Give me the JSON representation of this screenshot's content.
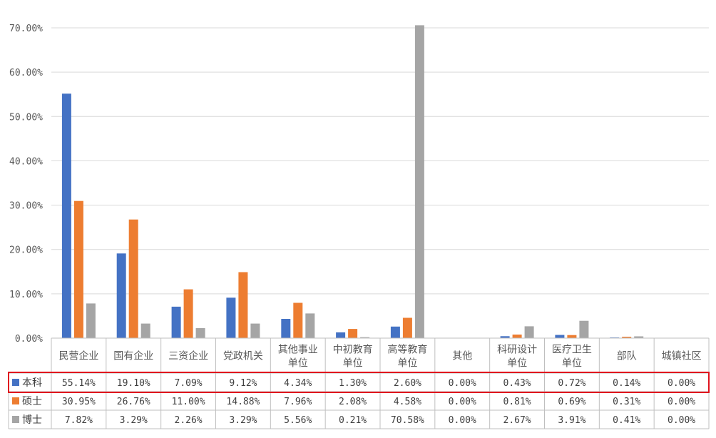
{
  "chart_data": {
    "type": "bar",
    "title": "",
    "xlabel": "",
    "ylabel": "",
    "ylim": [
      0,
      70
    ],
    "y_ticks": [
      "0.00%",
      "10.00%",
      "20.00%",
      "30.00%",
      "40.00%",
      "50.00%",
      "60.00%",
      "70.00%"
    ],
    "grid": true,
    "legend": "data-table",
    "categories": [
      [
        "民营企业"
      ],
      [
        "国有企业"
      ],
      [
        "三资企业"
      ],
      [
        "党政机关"
      ],
      [
        "其他事业",
        "单位"
      ],
      [
        "中初教育",
        "单位"
      ],
      [
        "高等教育",
        "单位"
      ],
      [
        "其他"
      ],
      [
        "科研设计",
        "单位"
      ],
      [
        "医疗卫生",
        "单位"
      ],
      [
        "部队"
      ],
      [
        "城镇社区"
      ]
    ],
    "series": [
      {
        "name": "本科",
        "color": "#4472C4",
        "values": [
          55.14,
          19.1,
          7.09,
          9.12,
          4.34,
          1.3,
          2.6,
          0.0,
          0.43,
          0.72,
          0.14,
          0.0
        ],
        "labels": [
          "55.14%",
          "19.10%",
          "7.09%",
          "9.12%",
          "4.34%",
          "1.30%",
          "2.60%",
          "0.00%",
          "0.43%",
          "0.72%",
          "0.14%",
          "0.00%"
        ],
        "highlighted": true
      },
      {
        "name": "硕士",
        "color": "#ED7D31",
        "values": [
          30.95,
          26.76,
          11.0,
          14.88,
          7.96,
          2.08,
          4.58,
          0.0,
          0.81,
          0.69,
          0.31,
          0.0
        ],
        "labels": [
          "30.95%",
          "26.76%",
          "11.00%",
          "14.88%",
          "7.96%",
          "2.08%",
          "4.58%",
          "0.00%",
          "0.81%",
          "0.69%",
          "0.31%",
          "0.00%"
        ],
        "highlighted": false
      },
      {
        "name": "博士",
        "color": "#A5A5A5",
        "values": [
          7.82,
          3.29,
          2.26,
          3.29,
          5.56,
          0.21,
          70.58,
          0.0,
          2.67,
          3.91,
          0.41,
          0.0
        ],
        "labels": [
          "7.82%",
          "3.29%",
          "2.26%",
          "3.29%",
          "5.56%",
          "0.21%",
          "70.58%",
          "0.00%",
          "2.67%",
          "3.91%",
          "0.41%",
          "0.00%"
        ],
        "highlighted": false
      }
    ],
    "colors": {
      "grid": "#D9D9D9",
      "table_border": "#BFBFBF",
      "highlight": "#E0141E"
    }
  }
}
